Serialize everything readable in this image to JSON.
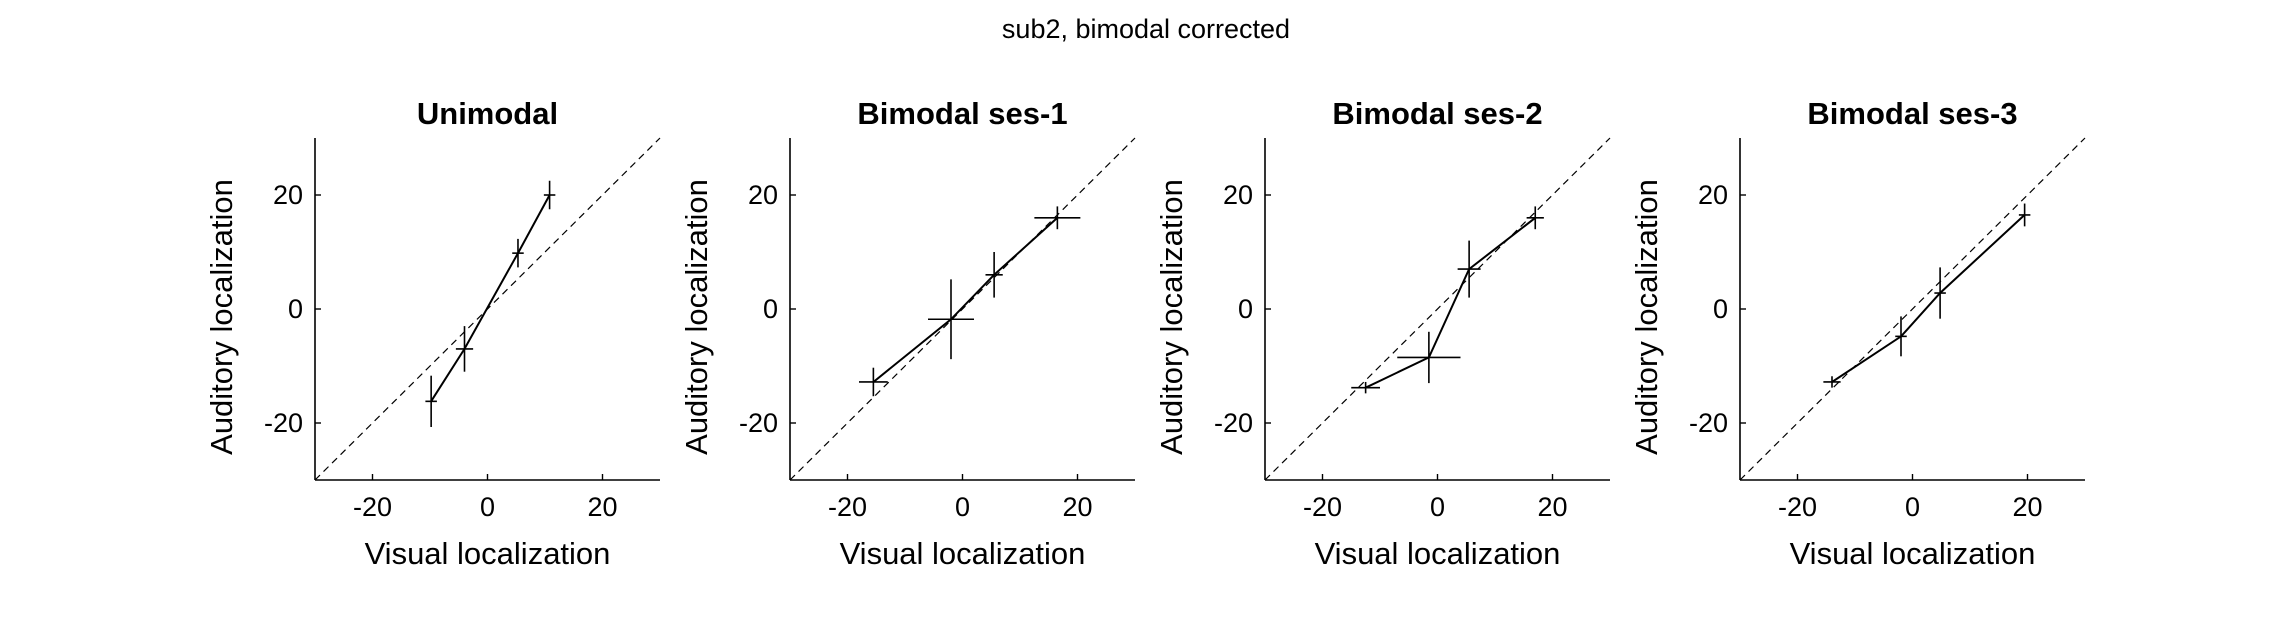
{
  "figure_title": "sub2, bimodal corrected",
  "chart_data": [
    {
      "type": "line",
      "title": "Unimodal",
      "xlabel": "Visual localization",
      "ylabel": "Auditory localization",
      "xlim": [
        -30,
        30
      ],
      "ylim": [
        -30,
        30
      ],
      "xticks": [
        -20,
        0,
        20
      ],
      "yticks": [
        -20,
        0,
        20
      ],
      "reference_line": "identity (dashed)",
      "points": [
        {
          "x": -9.8,
          "y": -16.2,
          "xerr": 1.0,
          "yerr": 4.5
        },
        {
          "x": -4.0,
          "y": -7.0,
          "xerr": 1.5,
          "yerr": 4.0
        },
        {
          "x": 5.3,
          "y": 9.8,
          "xerr": 1.0,
          "yerr": 2.5
        },
        {
          "x": 10.8,
          "y": 20.0,
          "xerr": 1.0,
          "yerr": 2.5
        }
      ]
    },
    {
      "type": "line",
      "title": "Bimodal ses-1",
      "xlabel": "Visual localization",
      "ylabel": "Auditory localization",
      "xlim": [
        -30,
        30
      ],
      "ylim": [
        -30,
        30
      ],
      "xticks": [
        -20,
        0,
        20
      ],
      "yticks": [
        -20,
        0,
        20
      ],
      "reference_line": "identity (dashed)",
      "points": [
        {
          "x": -15.5,
          "y": -12.8,
          "xerr": 2.5,
          "yerr": 2.5
        },
        {
          "x": -2.0,
          "y": -1.8,
          "xerr": 4.0,
          "yerr": 7.0
        },
        {
          "x": 5.5,
          "y": 6.0,
          "xerr": 1.5,
          "yerr": 4.0
        },
        {
          "x": 16.5,
          "y": 16.0,
          "xerr": 4.0,
          "yerr": 2.0
        }
      ]
    },
    {
      "type": "line",
      "title": "Bimodal ses-2",
      "xlabel": "Visual localization",
      "ylabel": "Auditory localization",
      "xlim": [
        -30,
        30
      ],
      "ylim": [
        -30,
        30
      ],
      "xticks": [
        -20,
        0,
        20
      ],
      "yticks": [
        -20,
        0,
        20
      ],
      "reference_line": "identity (dashed)",
      "points": [
        {
          "x": -12.5,
          "y": -13.8,
          "xerr": 2.5,
          "yerr": 1.0
        },
        {
          "x": -1.5,
          "y": -8.5,
          "xerr": 5.5,
          "yerr": 4.5
        },
        {
          "x": 5.5,
          "y": 7.0,
          "xerr": 2.0,
          "yerr": 5.0
        },
        {
          "x": 17.0,
          "y": 16.0,
          "xerr": 1.5,
          "yerr": 2.0
        }
      ]
    },
    {
      "type": "line",
      "title": "Bimodal ses-3",
      "xlabel": "Visual localization",
      "ylabel": "Auditory localization",
      "xlim": [
        -30,
        30
      ],
      "ylim": [
        -30,
        30
      ],
      "xticks": [
        -20,
        0,
        20
      ],
      "yticks": [
        -20,
        0,
        20
      ],
      "reference_line": "identity (dashed)",
      "points": [
        {
          "x": -14.0,
          "y": -12.8,
          "xerr": 1.5,
          "yerr": 1.0
        },
        {
          "x": -2.0,
          "y": -4.8,
          "xerr": 1.0,
          "yerr": 3.5
        },
        {
          "x": 4.8,
          "y": 2.8,
          "xerr": 1.0,
          "yerr": 4.5
        },
        {
          "x": 19.5,
          "y": 16.5,
          "xerr": 1.0,
          "yerr": 2.0
        }
      ]
    }
  ]
}
